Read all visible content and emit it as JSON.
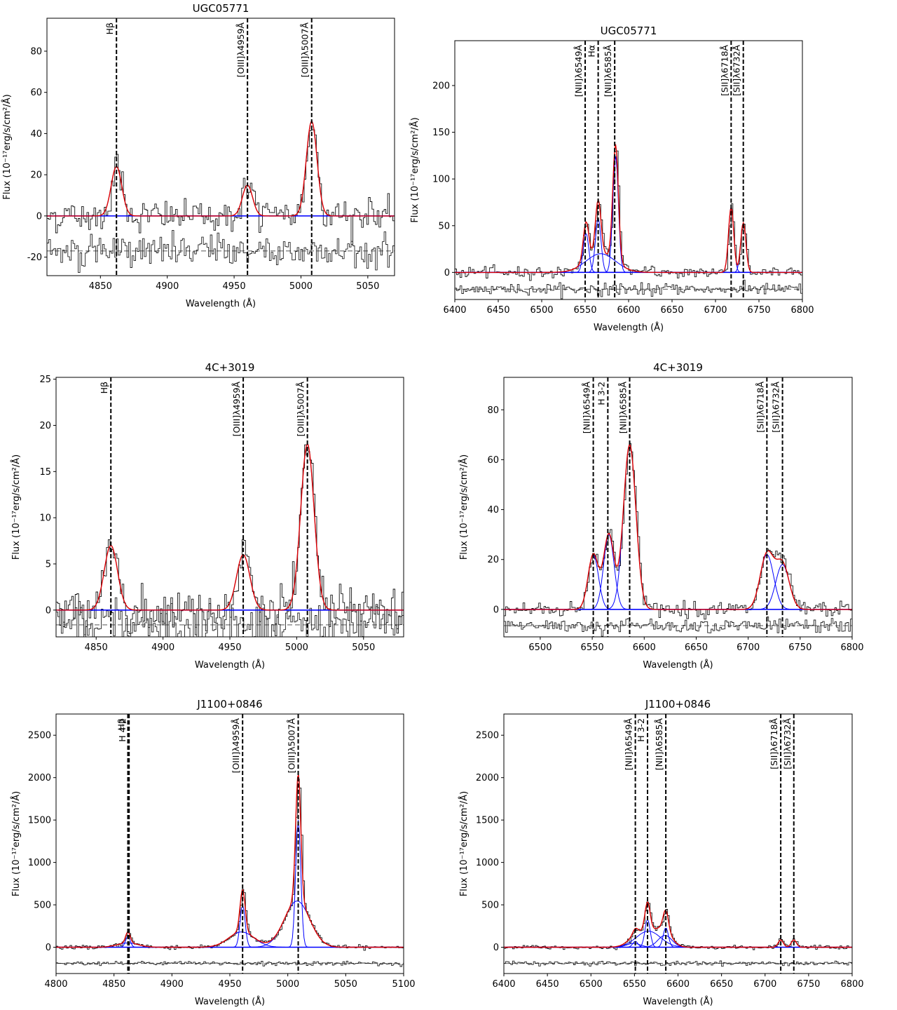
{
  "chart_data": [
    {
      "type": "line",
      "title": "UGC05771",
      "xlabel": "Wavelength (Å)",
      "ylabel": "Flux (10⁻¹⁷erg/s/cm²/Å)",
      "xlim": [
        4810,
        5070
      ],
      "ylim": [
        -29,
        96
      ],
      "xticks": [
        4850,
        4900,
        4950,
        5000,
        5050
      ],
      "yticks": [
        -20,
        0,
        20,
        40,
        60,
        80
      ],
      "lines": [
        {
          "label": "Hβ",
          "wave": 4862
        },
        {
          "label": "[OIII]λ4959Å",
          "wave": 4960
        },
        {
          "label": "[OIII]λ5007Å",
          "wave": 5008
        }
      ],
      "components": [
        {
          "center": 4862,
          "amp": 24,
          "sigma": 4.0
        },
        {
          "center": 4960,
          "amp": 15,
          "sigma": 3.8
        },
        {
          "center": 5008,
          "amp": 46,
          "sigma": 4.0
        }
      ],
      "broad": [],
      "residual_level": -17,
      "noise": 4
    },
    {
      "type": "line",
      "title": "UGC05771",
      "xlabel": "Wavelength (Å)",
      "ylabel": "Flux (10⁻¹⁷erg/s/cm²/Å)",
      "xlim": [
        6400,
        6800
      ],
      "ylim": [
        -29,
        248
      ],
      "xticks": [
        6400,
        6450,
        6500,
        6550,
        6600,
        6650,
        6700,
        6750,
        6800
      ],
      "yticks": [
        0,
        50,
        100,
        150,
        200
      ],
      "lines": [
        {
          "label": "[NII]λ6549Å",
          "wave": 6550
        },
        {
          "label": "Hα",
          "wave": 6565
        },
        {
          "label": "[NII]λ6585Å",
          "wave": 6584
        },
        {
          "label": "[SII]λ6718Å",
          "wave": 6718
        },
        {
          "label": "[SII]λ6732Å",
          "wave": 6732
        }
      ],
      "components": [
        {
          "center": 6551,
          "amp": 42,
          "sigma": 3.2
        },
        {
          "center": 6565,
          "amp": 58,
          "sigma": 3.2
        },
        {
          "center": 6585,
          "amp": 125,
          "sigma": 3.2
        },
        {
          "center": 6718,
          "amp": 70,
          "sigma": 3.0
        },
        {
          "center": 6732,
          "amp": 53,
          "sigma": 3.0
        }
      ],
      "broad": [
        {
          "center": 6568,
          "amp": 20,
          "sigma": 17
        }
      ],
      "residual_level": -18,
      "noise": 3
    },
    {
      "type": "line",
      "title": "4C+3019",
      "xlabel": "Wavelength (Å)",
      "ylabel": "Flux (10⁻¹⁷erg/s/cm²/Å)",
      "xlim": [
        4820,
        5080
      ],
      "ylim": [
        -2.9,
        25.2
      ],
      "xticks": [
        4850,
        4900,
        4950,
        5000,
        5050
      ],
      "yticks": [
        0,
        5,
        10,
        15,
        20,
        25
      ],
      "lines": [
        {
          "label": "Hβ",
          "wave": 4861
        },
        {
          "label": "[OIII]λ4959Å",
          "wave": 4960
        },
        {
          "label": "[OIII]λ5007Å",
          "wave": 5008
        }
      ],
      "components": [
        {
          "center": 4861,
          "amp": 7,
          "sigma": 5.0
        },
        {
          "center": 4960,
          "amp": 6,
          "sigma": 5.0
        },
        {
          "center": 5008,
          "amp": 18,
          "sigma": 5.0
        }
      ],
      "broad": [],
      "residual_level": -1.6,
      "noise": 1.2
    },
    {
      "type": "line",
      "title": "4C+3019",
      "xlabel": "Wavelength (Å)",
      "ylabel": "Flux (10⁻¹⁷erg/s/cm²/Å)",
      "xlim": [
        6465,
        6800
      ],
      "ylim": [
        -11,
        93
      ],
      "xticks": [
        6500,
        6550,
        6600,
        6650,
        6700,
        6750,
        6800
      ],
      "yticks": [
        0,
        20,
        40,
        60,
        80
      ],
      "lines": [
        {
          "label": "[NII]λ6549Å",
          "wave": 6551
        },
        {
          "label": "H 3-2",
          "wave": 6565
        },
        {
          "label": "[NII]λ6585Å",
          "wave": 6586
        },
        {
          "label": "[SII]λ6718Å",
          "wave": 6718
        },
        {
          "label": "[SII]λ6732Å",
          "wave": 6733
        }
      ],
      "components": [
        {
          "center": 6551,
          "amp": 22,
          "sigma": 5.0
        },
        {
          "center": 6566,
          "amp": 30,
          "sigma": 5.0
        },
        {
          "center": 6586,
          "amp": 66,
          "sigma": 6.0
        },
        {
          "center": 6718,
          "amp": 22,
          "sigma": 6.5
        },
        {
          "center": 6733,
          "amp": 18,
          "sigma": 6.5
        }
      ],
      "broad": [],
      "residual_level": -6.5,
      "noise": 1.5
    },
    {
      "type": "line",
      "title": "J1100+0846",
      "xlabel": "Wavelength (Å)",
      "ylabel": "Flux (10⁻¹⁷erg/s/cm²/Å)",
      "xlim": [
        4800,
        5100
      ],
      "ylim": [
        -310,
        2750
      ],
      "xticks": [
        4800,
        4850,
        4900,
        4950,
        5000,
        5050,
        5100
      ],
      "yticks": [
        0,
        500,
        1000,
        1500,
        2000,
        2500
      ],
      "lines": [
        {
          "label": "Hβ",
          "wave": 4862
        },
        {
          "label": "H 4-2",
          "wave": 4863
        },
        {
          "label": "[OIII]λ4959Å",
          "wave": 4961
        },
        {
          "label": "[OIII]λ5007Å",
          "wave": 5009
        }
      ],
      "components": [
        {
          "center": 4862,
          "amp": 130,
          "sigma": 2.0
        },
        {
          "center": 4961,
          "amp": 500,
          "sigma": 2.2
        },
        {
          "center": 5009,
          "amp": 1500,
          "sigma": 2.2
        }
      ],
      "broad": [
        {
          "center": 4862,
          "amp": 50,
          "sigma": 9
        },
        {
          "center": 4960,
          "amp": 180,
          "sigma": 11
        },
        {
          "center": 5008,
          "amp": 545,
          "sigma": 11
        }
      ],
      "residual_level": -190,
      "noise": 12
    },
    {
      "type": "line",
      "title": "J1100+0846",
      "xlabel": "Wavelength (Å)",
      "ylabel": "Flux (10⁻¹⁷erg/s/cm²/Å)",
      "xlim": [
        6400,
        6800
      ],
      "ylim": [
        -310,
        2750
      ],
      "xticks": [
        6400,
        6450,
        6500,
        6550,
        6600,
        6650,
        6700,
        6750,
        6800
      ],
      "yticks": [
        0,
        500,
        1000,
        1500,
        2000,
        2500
      ],
      "lines": [
        {
          "label": "[NII]λ6549Å",
          "wave": 6551
        },
        {
          "label": "H 3-2",
          "wave": 6565
        },
        {
          "label": "[NII]λ6585Å",
          "wave": 6586
        },
        {
          "label": "[SII]λ6718Å",
          "wave": 6718
        },
        {
          "label": "[SII]λ6732Å",
          "wave": 6733
        }
      ],
      "components": [
        {
          "center": 6551,
          "amp": 70,
          "sigma": 3.0
        },
        {
          "center": 6565,
          "amp": 330,
          "sigma": 3.0
        },
        {
          "center": 6586,
          "amp": 230,
          "sigma": 3.0
        },
        {
          "center": 6718,
          "amp": 85,
          "sigma": 3.0
        },
        {
          "center": 6733,
          "amp": 85,
          "sigma": 3.0
        }
      ],
      "broad": [
        {
          "center": 6549,
          "amp": 45,
          "sigma": 8
        },
        {
          "center": 6566,
          "amp": 190,
          "sigma": 14
        },
        {
          "center": 6585,
          "amp": 140,
          "sigma": 8
        }
      ],
      "residual_level": -190,
      "noise": 12
    }
  ]
}
